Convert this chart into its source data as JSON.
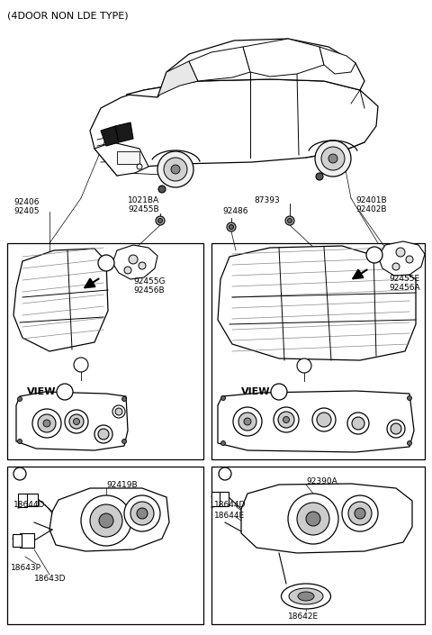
{
  "bg_color": "#ffffff",
  "line_color": "#000000",
  "fig_width": 4.8,
  "fig_height": 7.05,
  "dpi": 100,
  "title": "(4DOOR NON LDE TYPE)",
  "labels": {
    "top_left": "(4DOOR NON LDE TYPE)",
    "lbl_1021BA": "1021BA",
    "lbl_92455B": "92455B",
    "lbl_87393": "87393",
    "lbl_92406": "92406",
    "lbl_92405": "92405",
    "lbl_92401B": "92401B",
    "lbl_92402B": "92402B",
    "lbl_92486": "92486",
    "lbl_92455G": "92455G",
    "lbl_92456B": "92456B",
    "lbl_92455E": "92455E",
    "lbl_92456A": "92456A",
    "lbl_VIEW_B": "VIEW",
    "lbl_VIEW_A": "VIEW",
    "lbl_92419B": "92419B",
    "lbl_18644D_b": "18644D",
    "lbl_18643P": "18643P",
    "lbl_18643D": "18643D",
    "lbl_92390A": "92390A",
    "lbl_18644D_a": "18644D",
    "lbl_18644E": "18644E",
    "lbl_18642E": "18642E"
  }
}
